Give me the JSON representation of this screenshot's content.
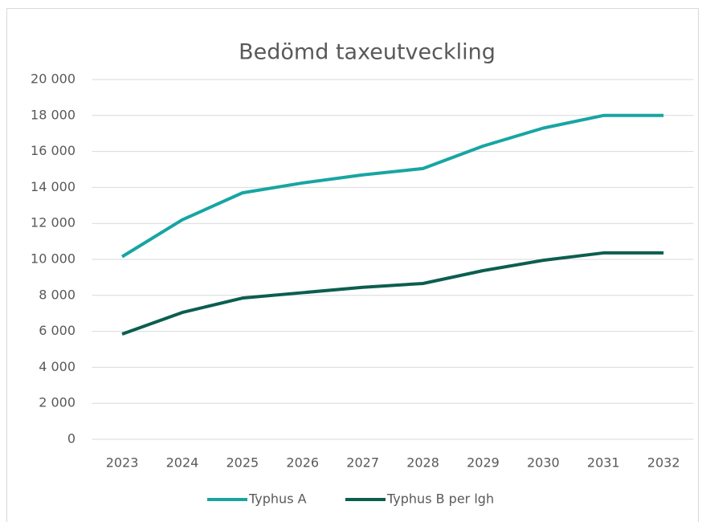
{
  "chart_data": {
    "type": "line",
    "title": "Bedömd taxeutveckling",
    "categories": [
      "2023",
      "2024",
      "2025",
      "2026",
      "2027",
      "2028",
      "2029",
      "2030",
      "2031",
      "2032"
    ],
    "series": [
      {
        "name": "Typhus A",
        "color": "#17a5a3",
        "values": [
          10150,
          12200,
          13700,
          14250,
          14700,
          15050,
          16300,
          17300,
          18000,
          18000
        ]
      },
      {
        "name": "Typhus B per lgh",
        "color": "#0b5e50",
        "values": [
          5850,
          7050,
          7850,
          8150,
          8450,
          8660,
          9375,
          9950,
          10360,
          10360
        ]
      }
    ],
    "ylim": [
      0,
      20000
    ],
    "yticks": [
      0,
      {
        "value": 2000,
        "label": "2 000"
      },
      {
        "value": 4000,
        "label": "4 000"
      },
      {
        "value": 6000,
        "label": "6 000"
      },
      {
        "value": 8000,
        "label": "8 000"
      },
      {
        "value": 10000,
        "label": "10 000"
      },
      {
        "value": 12000,
        "label": "12 000"
      },
      {
        "value": 14000,
        "label": "14 000"
      },
      {
        "value": 16000,
        "label": "16 000"
      },
      {
        "value": 18000,
        "label": "18 000"
      },
      {
        "value": 20000,
        "label": "20 000"
      }
    ],
    "grid": true,
    "legend": "bottom"
  }
}
